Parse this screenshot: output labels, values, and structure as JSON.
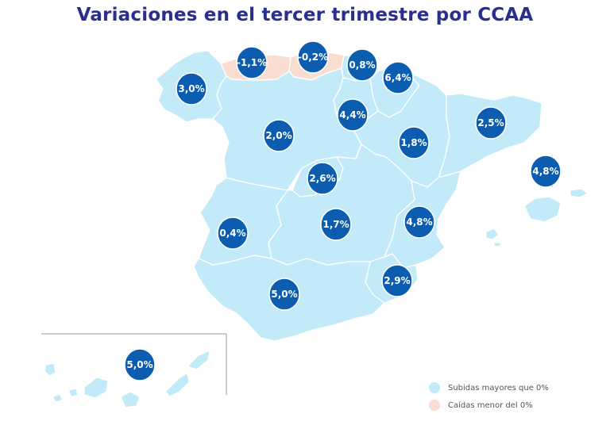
{
  "title": "Variaciones en el tercer trimestre por CCAA",
  "colors": {
    "rise_fill": "#c3eaf8",
    "fall_fill": "#f8ddd0",
    "border": "#ffffff",
    "bubble_fill": "#0c5db0",
    "bubble_stroke": "#ffffff",
    "title": "#2a2f8e"
  },
  "regions": [
    {
      "id": "galicia",
      "value": "3,0%",
      "category": "rise"
    },
    {
      "id": "asturias",
      "value": "-1,1%",
      "category": "fall"
    },
    {
      "id": "cantabria",
      "value": "-0,2%",
      "category": "fall"
    },
    {
      "id": "pais-vasco",
      "value": "0,8%",
      "category": "rise"
    },
    {
      "id": "navarra",
      "value": "6,4%",
      "category": "rise"
    },
    {
      "id": "la-rioja",
      "value": "4,4%",
      "category": "rise"
    },
    {
      "id": "aragon",
      "value": "1,8%",
      "category": "rise"
    },
    {
      "id": "cataluna",
      "value": "2,5%",
      "category": "rise"
    },
    {
      "id": "castilla-leon",
      "value": "2,0%",
      "category": "rise"
    },
    {
      "id": "madrid",
      "value": "2,6%",
      "category": "rise"
    },
    {
      "id": "baleares",
      "value": "4,8%",
      "category": "rise"
    },
    {
      "id": "extremadura",
      "value": "0,4%",
      "category": "rise"
    },
    {
      "id": "castilla-la-mancha",
      "value": "1,7%",
      "category": "rise"
    },
    {
      "id": "valencia",
      "value": "4,8%",
      "category": "rise"
    },
    {
      "id": "murcia",
      "value": "2,9%",
      "category": "rise"
    },
    {
      "id": "andalucia",
      "value": "5,0%",
      "category": "rise"
    },
    {
      "id": "canarias",
      "value": "5,0%",
      "category": "rise"
    }
  ],
  "legend": [
    {
      "label": "Subidas mayores que 0%",
      "color": "#c3eaf8"
    },
    {
      "label": "Caídas menor del 0%",
      "color": "#f8ddd0"
    }
  ]
}
